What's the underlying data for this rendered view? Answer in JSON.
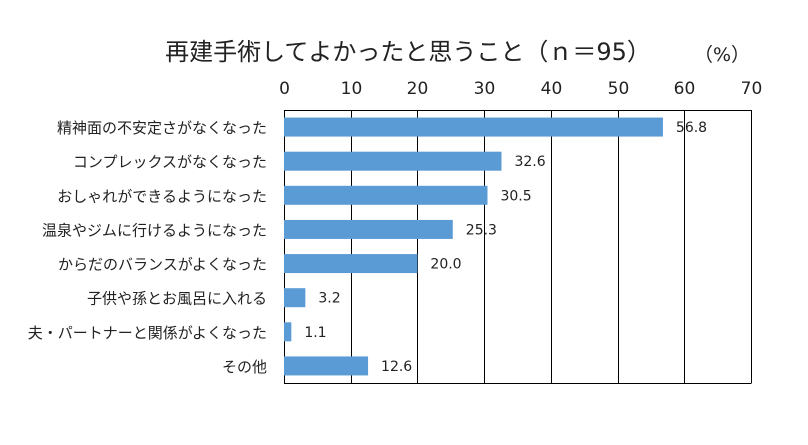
{
  "chart_data": {
    "type": "bar",
    "orientation": "horizontal",
    "title": "再建手術してよかったと思うこと（ｎ＝95）",
    "unit_label": "（%）",
    "xlim": [
      0,
      70
    ],
    "x_ticks": [
      0,
      10,
      20,
      30,
      40,
      50,
      60,
      70
    ],
    "grid": true,
    "categories": [
      "精神面の不安定さがなくなった",
      "コンプレックスがなくなった",
      "おしゃれができるようになった",
      "温泉やジムに行けるようになった",
      "からだのバランスがよくなった",
      "子供や孫とお風呂に入れる",
      "夫・パートナーと関係がよくなった",
      "その他"
    ],
    "values": [
      56.8,
      32.6,
      30.5,
      25.3,
      20.0,
      3.2,
      1.1,
      12.6
    ],
    "value_labels": [
      "56.8",
      "32.6",
      "30.5",
      "25.3",
      "20.0",
      "3.2",
      "1.1",
      "12.6"
    ],
    "bar_color": "#5b9bd5"
  }
}
